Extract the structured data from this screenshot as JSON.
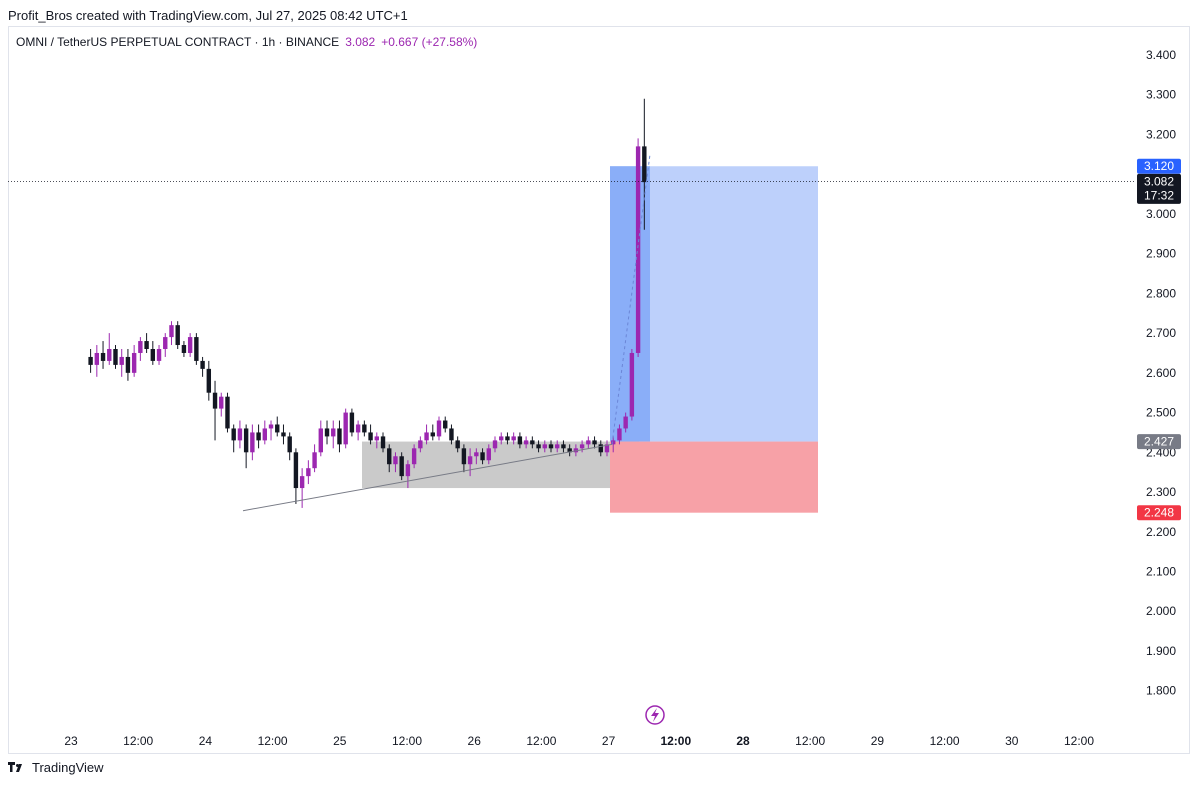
{
  "header": {
    "credit": "Profit_Bros created with TradingView.com, Jul 27, 2025 08:42 UTC+1"
  },
  "legend": {
    "symbol": "OMNI / TetherUS PERPETUAL CONTRACT · 1h · BINANCE",
    "price": "3.082",
    "change": "+0.667 (+27.58%)"
  },
  "footer": {
    "brand": "TradingView"
  },
  "colors": {
    "up": "#9c27b0",
    "down": "#131722",
    "target_zone": "#bdd0fb",
    "stop_zone": "#f7a1a7",
    "consolidation_zone": "#c4c4c4",
    "target_label": "#2962ff",
    "stop_label": "#f23645",
    "entry_label": "#787b86"
  },
  "chart_data": {
    "type": "candlestick",
    "title": "OMNI / TetherUS PERPETUAL CONTRACT · 1h · BINANCE",
    "ylim": [
      1.72,
      3.46
    ],
    "y_ticks": [
      "3.400",
      "3.300",
      "3.200",
      "3.000",
      "2.900",
      "2.800",
      "2.700",
      "2.600",
      "2.500",
      "2.400",
      "2.300",
      "2.200",
      "2.100",
      "2.000",
      "1.900",
      "1.800"
    ],
    "x_ticks": [
      {
        "label": "23",
        "t": 0,
        "bold": false
      },
      {
        "label": "12:00",
        "t": 12,
        "bold": false
      },
      {
        "label": "24",
        "t": 24,
        "bold": false
      },
      {
        "label": "12:00",
        "t": 36,
        "bold": false
      },
      {
        "label": "25",
        "t": 48,
        "bold": false
      },
      {
        "label": "12:00",
        "t": 60,
        "bold": false
      },
      {
        "label": "26",
        "t": 72,
        "bold": false
      },
      {
        "label": "12:00",
        "t": 84,
        "bold": false
      },
      {
        "label": "27",
        "t": 96,
        "bold": false
      },
      {
        "label": "12:00",
        "t": 108,
        "bold": true
      },
      {
        "label": "28",
        "t": 120,
        "bold": true
      },
      {
        "label": "12:00",
        "t": 132,
        "bold": false
      },
      {
        "label": "29",
        "t": 144,
        "bold": false
      },
      {
        "label": "12:00",
        "t": 156,
        "bold": false
      },
      {
        "label": "30",
        "t": 168,
        "bold": false
      },
      {
        "label": "12:00",
        "t": 180,
        "bold": false
      }
    ],
    "grid": false,
    "candles": [
      [
        2.64,
        2.66,
        2.6,
        2.62
      ],
      [
        2.62,
        2.67,
        2.59,
        2.65
      ],
      [
        2.65,
        2.68,
        2.61,
        2.63
      ],
      [
        2.63,
        2.7,
        2.62,
        2.66
      ],
      [
        2.66,
        2.67,
        2.61,
        2.62
      ],
      [
        2.62,
        2.66,
        2.59,
        2.64
      ],
      [
        2.64,
        2.66,
        2.58,
        2.6
      ],
      [
        2.6,
        2.67,
        2.59,
        2.65
      ],
      [
        2.65,
        2.69,
        2.63,
        2.68
      ],
      [
        2.68,
        2.7,
        2.65,
        2.66
      ],
      [
        2.66,
        2.68,
        2.62,
        2.63
      ],
      [
        2.63,
        2.67,
        2.62,
        2.66
      ],
      [
        2.66,
        2.7,
        2.64,
        2.69
      ],
      [
        2.69,
        2.73,
        2.67,
        2.72
      ],
      [
        2.72,
        2.73,
        2.66,
        2.67
      ],
      [
        2.67,
        2.68,
        2.64,
        2.65
      ],
      [
        2.65,
        2.7,
        2.64,
        2.69
      ],
      [
        2.69,
        2.7,
        2.62,
        2.63
      ],
      [
        2.63,
        2.64,
        2.59,
        2.61
      ],
      [
        2.61,
        2.63,
        2.53,
        2.55
      ],
      [
        2.55,
        2.58,
        2.43,
        2.51
      ],
      [
        2.51,
        2.55,
        2.49,
        2.54
      ],
      [
        2.54,
        2.55,
        2.45,
        2.46
      ],
      [
        2.46,
        2.47,
        2.4,
        2.43
      ],
      [
        2.43,
        2.48,
        2.41,
        2.46
      ],
      [
        2.46,
        2.47,
        2.36,
        2.4
      ],
      [
        2.4,
        2.47,
        2.38,
        2.45
      ],
      [
        2.45,
        2.47,
        2.41,
        2.43
      ],
      [
        2.43,
        2.48,
        2.42,
        2.46
      ],
      [
        2.46,
        2.48,
        2.43,
        2.47
      ],
      [
        2.47,
        2.49,
        2.44,
        2.45
      ],
      [
        2.45,
        2.47,
        2.42,
        2.44
      ],
      [
        2.44,
        2.45,
        2.38,
        2.4
      ],
      [
        2.4,
        2.41,
        2.27,
        2.31
      ],
      [
        2.31,
        2.36,
        2.26,
        2.34
      ],
      [
        2.34,
        2.38,
        2.32,
        2.36
      ],
      [
        2.36,
        2.42,
        2.35,
        2.4
      ],
      [
        2.4,
        2.48,
        2.39,
        2.46
      ],
      [
        2.46,
        2.48,
        2.42,
        2.44
      ],
      [
        2.44,
        2.48,
        2.41,
        2.46
      ],
      [
        2.46,
        2.48,
        2.4,
        2.42
      ],
      [
        2.42,
        2.51,
        2.41,
        2.5
      ],
      [
        2.5,
        2.51,
        2.44,
        2.45
      ],
      [
        2.45,
        2.48,
        2.43,
        2.47
      ],
      [
        2.47,
        2.48,
        2.44,
        2.45
      ],
      [
        2.45,
        2.47,
        2.42,
        2.43
      ],
      [
        2.43,
        2.45,
        2.41,
        2.44
      ],
      [
        2.44,
        2.45,
        2.4,
        2.41
      ],
      [
        2.41,
        2.42,
        2.35,
        2.37
      ],
      [
        2.37,
        2.4,
        2.35,
        2.39
      ],
      [
        2.39,
        2.4,
        2.33,
        2.34
      ],
      [
        2.34,
        2.38,
        2.31,
        2.37
      ],
      [
        2.37,
        2.42,
        2.36,
        2.41
      ],
      [
        2.41,
        2.44,
        2.4,
        2.43
      ],
      [
        2.43,
        2.47,
        2.42,
        2.45
      ],
      [
        2.45,
        2.47,
        2.43,
        2.44
      ],
      [
        2.44,
        2.49,
        2.43,
        2.48
      ],
      [
        2.48,
        2.49,
        2.45,
        2.46
      ],
      [
        2.46,
        2.47,
        2.42,
        2.43
      ],
      [
        2.43,
        2.44,
        2.4,
        2.41
      ],
      [
        2.41,
        2.42,
        2.35,
        2.37
      ],
      [
        2.37,
        2.41,
        2.34,
        2.39
      ],
      [
        2.39,
        2.41,
        2.37,
        2.4
      ],
      [
        2.4,
        2.41,
        2.37,
        2.38
      ],
      [
        2.38,
        2.42,
        2.37,
        2.41
      ],
      [
        2.41,
        2.44,
        2.4,
        2.43
      ],
      [
        2.43,
        2.45,
        2.42,
        2.44
      ],
      [
        2.44,
        2.45,
        2.42,
        2.43
      ],
      [
        2.43,
        2.45,
        2.42,
        2.44
      ],
      [
        2.44,
        2.45,
        2.41,
        2.42
      ],
      [
        2.42,
        2.44,
        2.41,
        2.43
      ],
      [
        2.43,
        2.44,
        2.41,
        2.42
      ],
      [
        2.42,
        2.43,
        2.4,
        2.41
      ],
      [
        2.41,
        2.43,
        2.4,
        2.42
      ],
      [
        2.42,
        2.43,
        2.4,
        2.41
      ],
      [
        2.41,
        2.43,
        2.4,
        2.42
      ],
      [
        2.42,
        2.43,
        2.4,
        2.41
      ],
      [
        2.41,
        2.42,
        2.39,
        2.4
      ],
      [
        2.4,
        2.42,
        2.39,
        2.41
      ],
      [
        2.41,
        2.43,
        2.4,
        2.42
      ],
      [
        2.42,
        2.44,
        2.41,
        2.43
      ],
      [
        2.43,
        2.44,
        2.41,
        2.42
      ],
      [
        2.42,
        2.43,
        2.39,
        2.4
      ],
      [
        2.4,
        2.43,
        2.39,
        2.42
      ],
      [
        2.42,
        2.44,
        2.4,
        2.43
      ],
      [
        2.43,
        2.47,
        2.42,
        2.46
      ],
      [
        2.46,
        2.5,
        2.45,
        2.49
      ],
      [
        2.49,
        2.66,
        2.48,
        2.65
      ],
      [
        2.65,
        3.19,
        2.64,
        3.17
      ],
      [
        3.17,
        3.29,
        2.96,
        3.08
      ]
    ],
    "target_price": "3.120",
    "entry_price": "2.427",
    "stop_price": "2.248",
    "last_price": "3.082",
    "countdown": "17:32"
  }
}
